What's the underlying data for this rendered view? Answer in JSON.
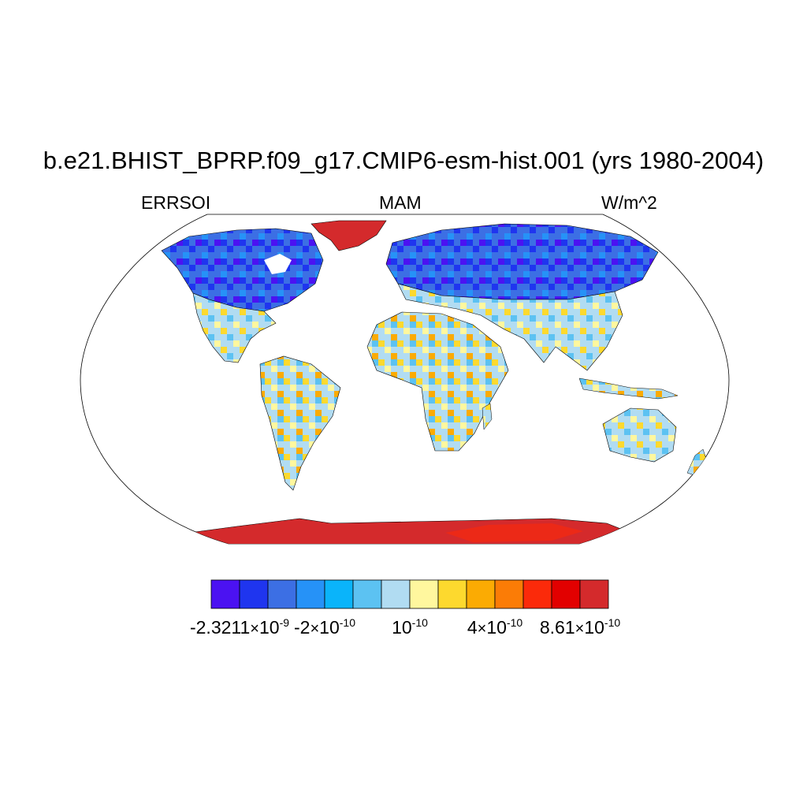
{
  "title": "b.e21.BHIST_BPRP.f09_g17.CMIP6-esm-hist.001 (yrs 1980-2004)",
  "subtitles": {
    "left": "ERRSOI",
    "center": "MAM",
    "right": "W/m^2"
  },
  "projection": "robinson",
  "colorbar": {
    "colors": [
      "#4b12f2",
      "#1f35ef",
      "#3c6fe4",
      "#2692f7",
      "#0ab4fa",
      "#5cc2f2",
      "#b1dcf2",
      "#fff79e",
      "#fdd92e",
      "#fbab03",
      "#fb7c06",
      "#fb2a0a",
      "#e20000",
      "#d42a2c"
    ],
    "labels": [
      {
        "mantissa": "-2.3211",
        "exponent": "-9",
        "tick": 1
      },
      {
        "mantissa": "-2",
        "exponent": "-10",
        "tick": 4
      },
      {
        "mantissa": "",
        "exponent": "-10",
        "tick": 7
      },
      {
        "mantissa": "4",
        "exponent": "-10",
        "tick": 10
      },
      {
        "mantissa": "8.61",
        "exponent": "-10",
        "tick": 13
      }
    ]
  },
  "regions": [
    {
      "name": "north-america-arctic",
      "fill": "blue-dark"
    },
    {
      "name": "north-america-mid",
      "fill": "mixed-light"
    },
    {
      "name": "greenland",
      "fill": "red"
    },
    {
      "name": "south-america",
      "fill": "mixed-warm"
    },
    {
      "name": "eurasia-north",
      "fill": "blue-dark"
    },
    {
      "name": "eurasia-south",
      "fill": "mixed-light"
    },
    {
      "name": "africa",
      "fill": "mixed-warm"
    },
    {
      "name": "australia",
      "fill": "mixed-light"
    },
    {
      "name": "antarctica",
      "fill": "red"
    }
  ]
}
